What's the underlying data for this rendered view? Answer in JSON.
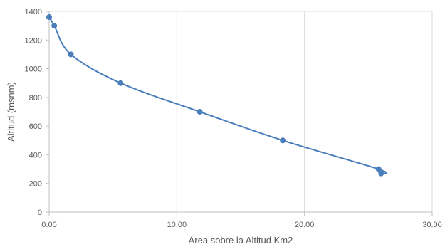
{
  "chart_data": {
    "type": "scatter",
    "xlabel": "Área sobre la Altitud Km2",
    "ylabel": "Altitud (msnm)",
    "xlim": [
      0,
      30
    ],
    "ylim": [
      0,
      1400
    ],
    "x_ticks": [
      0,
      10,
      20,
      30
    ],
    "x_tick_labels": [
      "0.00",
      "10.00",
      "20.00",
      "30.00"
    ],
    "y_ticks": [
      0,
      200,
      400,
      600,
      800,
      1000,
      1200,
      1400
    ],
    "y_tick_labels": [
      "0",
      "200",
      "400",
      "600",
      "800",
      "1000",
      "1200",
      "1400"
    ],
    "grid": "vertical",
    "smooth_line": true,
    "color": "#4a7ebb",
    "series": [
      {
        "x": [
          0.0,
          0.4,
          1.7,
          5.6,
          11.8,
          18.3,
          25.8,
          26.0
        ],
        "y": [
          1360,
          1300,
          1100,
          900,
          700,
          500,
          300,
          270
        ]
      }
    ]
  }
}
